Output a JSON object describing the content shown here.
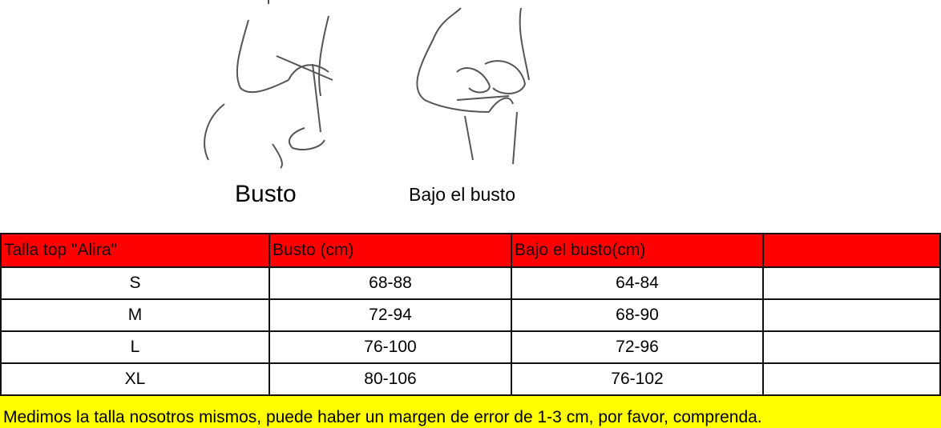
{
  "figures": [
    {
      "label": "Busto"
    },
    {
      "label": "Bajo el busto"
    }
  ],
  "table": {
    "headers": [
      "Talla top \"Alira\"",
      "Busto (cm)",
      "Bajo el busto(cm)",
      ""
    ],
    "rows": [
      [
        "S",
        "68-88",
        "64-84",
        ""
      ],
      [
        "M",
        "72-94",
        "68-90",
        ""
      ],
      [
        "L",
        "76-100",
        "72-96",
        ""
      ],
      [
        "XL",
        "80-106",
        "76-102",
        ""
      ]
    ]
  },
  "note": "Medimos la talla nosotros mismos, puede haber un margen de error de 1-3 cm, por favor, comprenda.",
  "colors": {
    "header": "#ff0000",
    "note": "#ffff00"
  }
}
